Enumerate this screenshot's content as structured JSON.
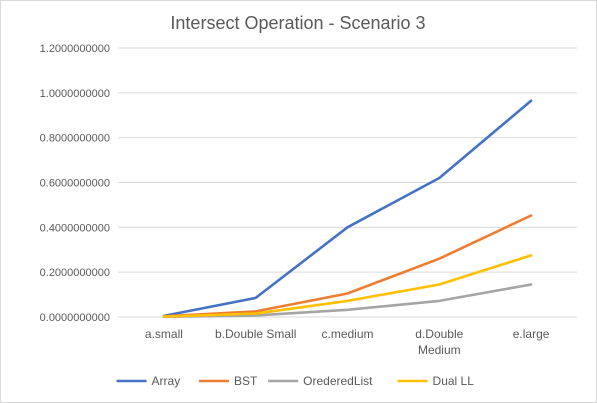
{
  "chart_data": {
    "type": "line",
    "title": "Intersect Operation - Scenario 3",
    "xlabel": "",
    "ylabel": "",
    "categories": [
      [
        "a.small"
      ],
      [
        "b.Double Small"
      ],
      [
        "c.medium"
      ],
      [
        "d.Double",
        "Medium"
      ],
      [
        "e.large"
      ]
    ],
    "ylim": [
      0,
      1.2
    ],
    "ytick_labels": [
      "0.0000000000",
      "0.2000000000",
      "0.4000000000",
      "0.6000000000",
      "0.8000000000",
      "1.0000000000",
      "1.2000000000"
    ],
    "grid": true,
    "legend_position": "bottom",
    "series": [
      {
        "name": "Array",
        "color": "#4472c4",
        "values": [
          0.005,
          0.085,
          0.4,
          0.62,
          0.965
        ]
      },
      {
        "name": "BST",
        "color": "#ed7d31",
        "values": [
          0.003,
          0.025,
          0.105,
          0.26,
          0.453
        ]
      },
      {
        "name": "OrederedList",
        "color": "#a5a5a5",
        "values": [
          0.001,
          0.007,
          0.032,
          0.072,
          0.145
        ]
      },
      {
        "name": "Dual LL",
        "color": "#ffc000",
        "values": [
          0.002,
          0.015,
          0.072,
          0.145,
          0.275
        ]
      }
    ]
  }
}
